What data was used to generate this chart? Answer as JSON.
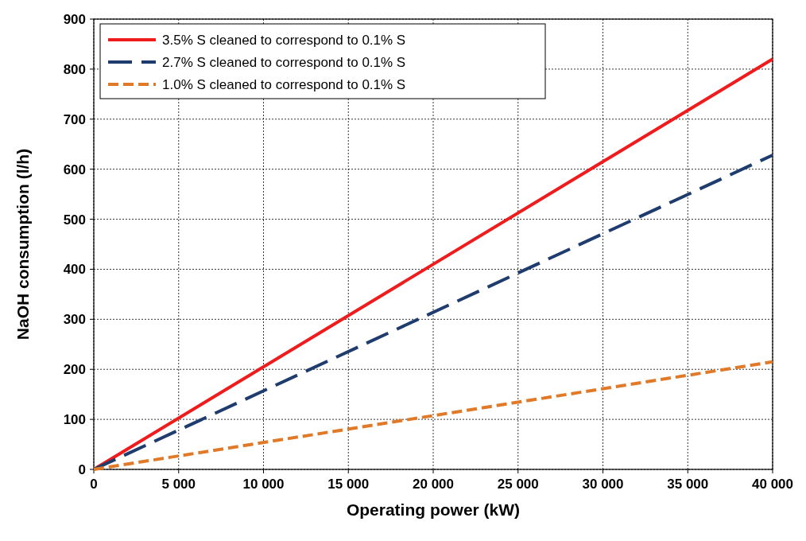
{
  "chart_data": {
    "type": "line",
    "xlabel": "Operating power (kW)",
    "ylabel": "NaOH consumption (l/h)",
    "x": [
      0,
      40000
    ],
    "series": [
      {
        "name": "3.5% S cleaned to correspond to 0.1% S",
        "color": "#ee1c1c",
        "values": [
          0,
          820
        ],
        "line_style": "solid"
      },
      {
        "name": "2.7% S cleaned to correspond to 0.1% S",
        "color": "#1f3c6e",
        "values": [
          0,
          628
        ],
        "line_style": "dashed"
      },
      {
        "name": "1.0% S cleaned to correspond to 0.1% S",
        "color": "#e07a28",
        "values": [
          0,
          215
        ],
        "line_style": "dashed"
      }
    ],
    "xlim": [
      0,
      40000
    ],
    "xticks": [
      0,
      {
        "value": 5000,
        "label": "5 000"
      },
      {
        "value": 10000,
        "label": "10 000"
      },
      {
        "value": 15000,
        "label": "15 000"
      },
      {
        "value": 20000,
        "label": "20 000"
      },
      {
        "value": 25000,
        "label": "25 000"
      },
      {
        "value": 30000,
        "label": "30 000"
      },
      {
        "value": 35000,
        "label": "35 000"
      },
      {
        "value": 40000,
        "label": "40 000"
      }
    ],
    "ylim": [
      0,
      900
    ],
    "yticks": [
      0,
      100,
      200,
      300,
      400,
      500,
      600,
      700,
      800,
      900
    ],
    "grid": true,
    "legend": "top left",
    "marker": "none"
  }
}
